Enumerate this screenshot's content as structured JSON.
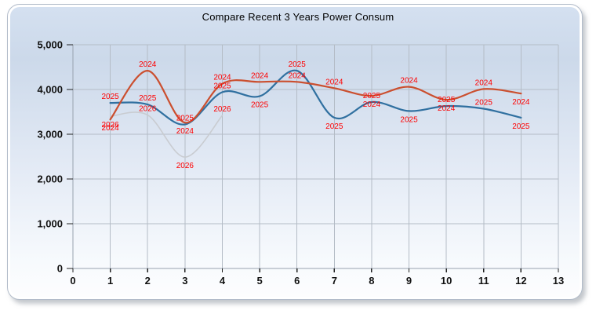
{
  "title": "Compare Recent 3 Years Power Consum",
  "chart_data": {
    "type": "line",
    "title": "Compare Recent 3 Years Power Consum",
    "xlabel": "",
    "ylabel": "",
    "xlim": [
      0,
      13
    ],
    "ylim": [
      0,
      5000
    ],
    "grid": true,
    "legend_position": "none",
    "x_ticks": [
      "0",
      "1",
      "2",
      "3",
      "4",
      "5",
      "6",
      "7",
      "8",
      "9",
      "10",
      "11",
      "12",
      "13"
    ],
    "y_ticks": [
      "0",
      "1,000",
      "2,000",
      "3,000",
      "4,000",
      "5,000"
    ],
    "y_tick_values": [
      0,
      1000,
      2000,
      3000,
      4000,
      5000
    ],
    "months": [
      1,
      2,
      3,
      4,
      5,
      6,
      7,
      8,
      9,
      10,
      11,
      12
    ],
    "point_label_color": "#ff0000",
    "series": [
      {
        "name": "2024",
        "color": "#cb4f2f",
        "values": [
          3330,
          4420,
          3260,
          4130,
          4170,
          4170,
          4030,
          3860,
          4060,
          3770,
          4010,
          3910
        ]
      },
      {
        "name": "2025",
        "color": "#3070a0",
        "values": [
          3700,
          3665,
          3220,
          3940,
          3850,
          4420,
          3370,
          3720,
          3520,
          3630,
          3570,
          3370
        ]
      },
      {
        "name": "2026",
        "color": "#c9ccd1",
        "values": [
          3400,
          3430,
          2490,
          3420
        ]
      }
    ],
    "colors": {
      "grid": "#b4bcc6",
      "axis": "#98a2ae",
      "tick": "#222222"
    }
  }
}
